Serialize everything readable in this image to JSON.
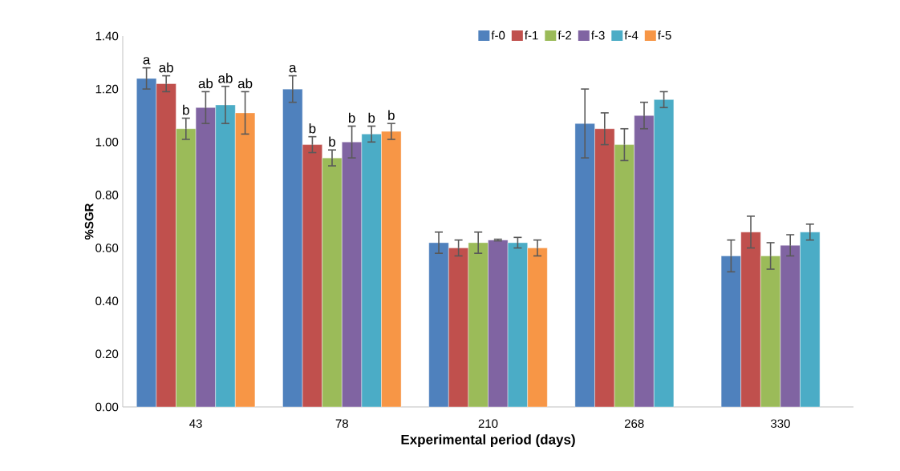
{
  "chart_data": {
    "type": "bar",
    "xlabel": "Experimental period (days)",
    "ylabel": "%SGR",
    "categories": [
      "43",
      "78",
      "210",
      "268",
      "330"
    ],
    "ylim": [
      0,
      1.4
    ],
    "yticks": [
      {
        "value": 0,
        "label": "0.00"
      },
      {
        "value": 0.2,
        "label": "0.20"
      },
      {
        "value": 0.4,
        "label": "0.40"
      },
      {
        "value": 0.6,
        "label": "0.60"
      },
      {
        "value": 0.8,
        "label": "0.80"
      },
      {
        "value": 1.0,
        "label": "1.00"
      },
      {
        "value": 1.2,
        "label": "1.20"
      },
      {
        "value": 1.4,
        "label": "1.40"
      }
    ],
    "grid": false,
    "legend": "top",
    "series": [
      {
        "name": "f-0",
        "color": "#4f81bd",
        "values": [
          1.24,
          1.2,
          0.62,
          1.07,
          0.57
        ],
        "errors": [
          0.04,
          0.05,
          0.04,
          0.13,
          0.06
        ],
        "value_labels": [
          "a",
          "a",
          null,
          null,
          null
        ]
      },
      {
        "name": "f-1",
        "color": "#c0504d",
        "values": [
          1.22,
          0.99,
          0.6,
          1.05,
          0.66
        ],
        "errors": [
          0.03,
          0.03,
          0.03,
          0.06,
          0.06
        ],
        "value_labels": [
          "ab",
          "b",
          null,
          null,
          null
        ]
      },
      {
        "name": "f-2",
        "color": "#9bbb59",
        "values": [
          1.05,
          0.94,
          0.62,
          0.99,
          0.57
        ],
        "errors": [
          0.04,
          0.03,
          0.04,
          0.06,
          0.05
        ],
        "value_labels": [
          "b",
          "b",
          null,
          null,
          null
        ]
      },
      {
        "name": "f-3",
        "color": "#8064a2",
        "values": [
          1.13,
          1.0,
          0.63,
          1.1,
          0.61
        ],
        "errors": [
          0.06,
          0.06,
          0.003,
          0.05,
          0.04
        ],
        "value_labels": [
          "ab",
          "b",
          null,
          null,
          null
        ]
      },
      {
        "name": "f-4",
        "color": "#4bacc6",
        "values": [
          1.14,
          1.03,
          0.62,
          1.16,
          0.66
        ],
        "errors": [
          0.07,
          0.03,
          0.02,
          0.03,
          0.03
        ],
        "value_labels": [
          "ab",
          "b",
          null,
          null,
          null
        ]
      },
      {
        "name": "f-5",
        "color": "#f79646",
        "values": [
          1.11,
          1.04,
          0.6,
          null,
          null
        ],
        "errors": [
          0.08,
          0.03,
          0.03,
          null,
          null
        ],
        "value_labels": [
          "ab",
          "b",
          null,
          null,
          null
        ]
      }
    ]
  }
}
